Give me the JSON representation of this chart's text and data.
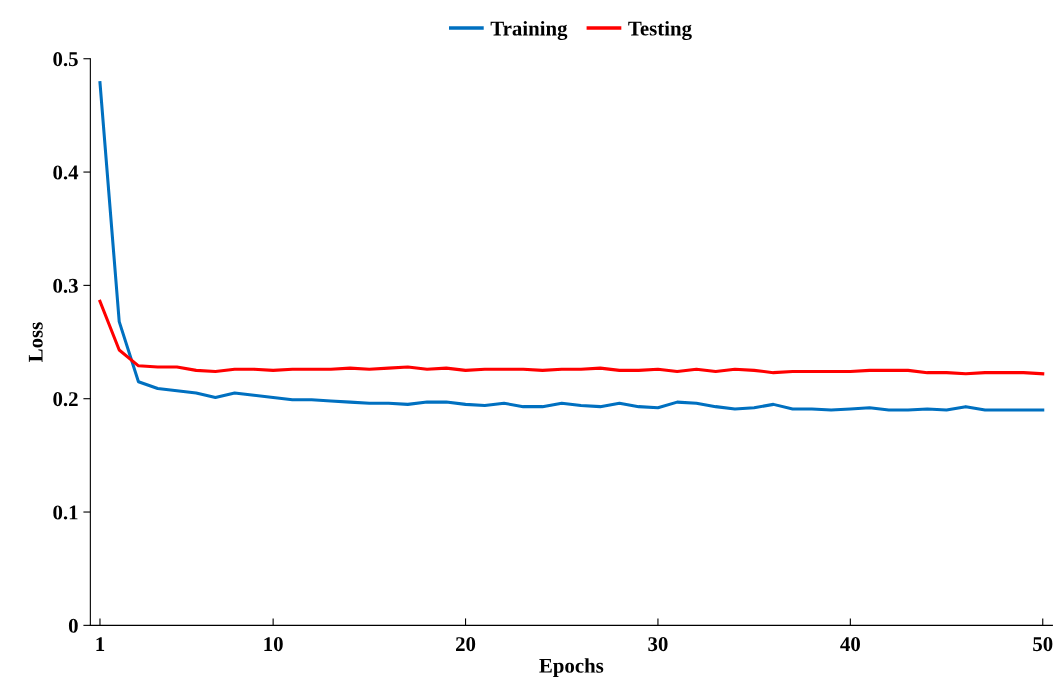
{
  "chart_data": {
    "type": "line",
    "xlabel": "Epochs",
    "ylabel": "Loss",
    "legend": "top",
    "grid": false,
    "line_style": "solid",
    "marker": "none",
    "x": [
      1,
      2,
      3,
      4,
      5,
      6,
      7,
      8,
      9,
      10,
      11,
      12,
      13,
      14,
      15,
      16,
      17,
      18,
      19,
      20,
      21,
      22,
      23,
      24,
      25,
      26,
      27,
      28,
      29,
      30,
      31,
      32,
      33,
      34,
      35,
      36,
      37,
      38,
      39,
      40,
      41,
      42,
      43,
      44,
      45,
      46,
      47,
      48,
      49,
      50
    ],
    "xlim": [
      0.5,
      50.5
    ],
    "xticks": [
      1,
      10,
      20,
      30,
      40,
      50
    ],
    "ylim": [
      0,
      0.5
    ],
    "yticks": [
      0,
      0.1,
      0.2,
      0.3,
      0.4,
      0.5
    ],
    "series": [
      {
        "name": "Training",
        "color": "#0070c0",
        "values": [
          0.479,
          0.268,
          0.215,
          0.209,
          0.207,
          0.205,
          0.201,
          0.205,
          0.203,
          0.201,
          0.199,
          0.199,
          0.198,
          0.197,
          0.196,
          0.196,
          0.195,
          0.197,
          0.197,
          0.195,
          0.194,
          0.196,
          0.193,
          0.193,
          0.196,
          0.194,
          0.193,
          0.196,
          0.193,
          0.192,
          0.197,
          0.196,
          0.193,
          0.191,
          0.192,
          0.195,
          0.191,
          0.191,
          0.19,
          0.191,
          0.192,
          0.19,
          0.19,
          0.191,
          0.19,
          0.193,
          0.19,
          0.19,
          0.19,
          0.19
        ]
      },
      {
        "name": "Testing",
        "color": "#ff0000",
        "values": [
          0.286,
          0.243,
          0.229,
          0.228,
          0.228,
          0.225,
          0.224,
          0.226,
          0.226,
          0.225,
          0.226,
          0.226,
          0.226,
          0.227,
          0.226,
          0.227,
          0.228,
          0.226,
          0.227,
          0.225,
          0.226,
          0.226,
          0.226,
          0.225,
          0.226,
          0.226,
          0.227,
          0.225,
          0.225,
          0.226,
          0.224,
          0.226,
          0.224,
          0.226,
          0.225,
          0.223,
          0.224,
          0.224,
          0.224,
          0.224,
          0.225,
          0.225,
          0.225,
          0.223,
          0.223,
          0.222,
          0.223,
          0.223,
          0.223,
          0.222
        ]
      }
    ]
  }
}
